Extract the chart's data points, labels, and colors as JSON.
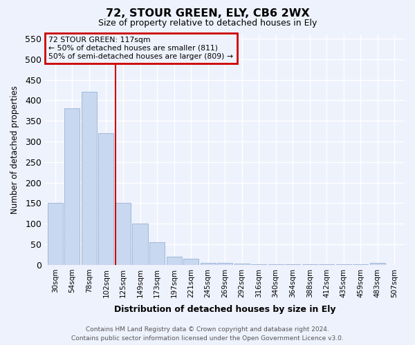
{
  "title": "72, STOUR GREEN, ELY, CB6 2WX",
  "subtitle": "Size of property relative to detached houses in Ely",
  "xlabel": "Distribution of detached houses by size in Ely",
  "ylabel": "Number of detached properties",
  "bin_labels": [
    "30sqm",
    "54sqm",
    "78sqm",
    "102sqm",
    "125sqm",
    "149sqm",
    "173sqm",
    "197sqm",
    "221sqm",
    "245sqm",
    "269sqm",
    "292sqm",
    "316sqm",
    "340sqm",
    "364sqm",
    "388sqm",
    "412sqm",
    "435sqm",
    "459sqm",
    "483sqm",
    "507sqm"
  ],
  "bar_heights": [
    150,
    380,
    420,
    320,
    150,
    100,
    55,
    20,
    15,
    5,
    5,
    3,
    2,
    2,
    1,
    1,
    1,
    1,
    1,
    5,
    0
  ],
  "bar_color": "#c8d8f0",
  "bar_edge_color": "#a0b8d8",
  "property_line_x": 3.55,
  "property_sqm": 117,
  "annotation_title": "72 STOUR GREEN: 117sqm",
  "annotation_line1": "← 50% of detached houses are smaller (811)",
  "annotation_line2": "50% of semi-detached houses are larger (809) →",
  "annotation_box_color": "#cc0000",
  "ylim": [
    0,
    560
  ],
  "yticks": [
    0,
    50,
    100,
    150,
    200,
    250,
    300,
    350,
    400,
    450,
    500,
    550
  ],
  "background_color": "#eef2fc",
  "footer": "Contains HM Land Registry data © Crown copyright and database right 2024.\nContains public sector information licensed under the Open Government Licence v3.0."
}
